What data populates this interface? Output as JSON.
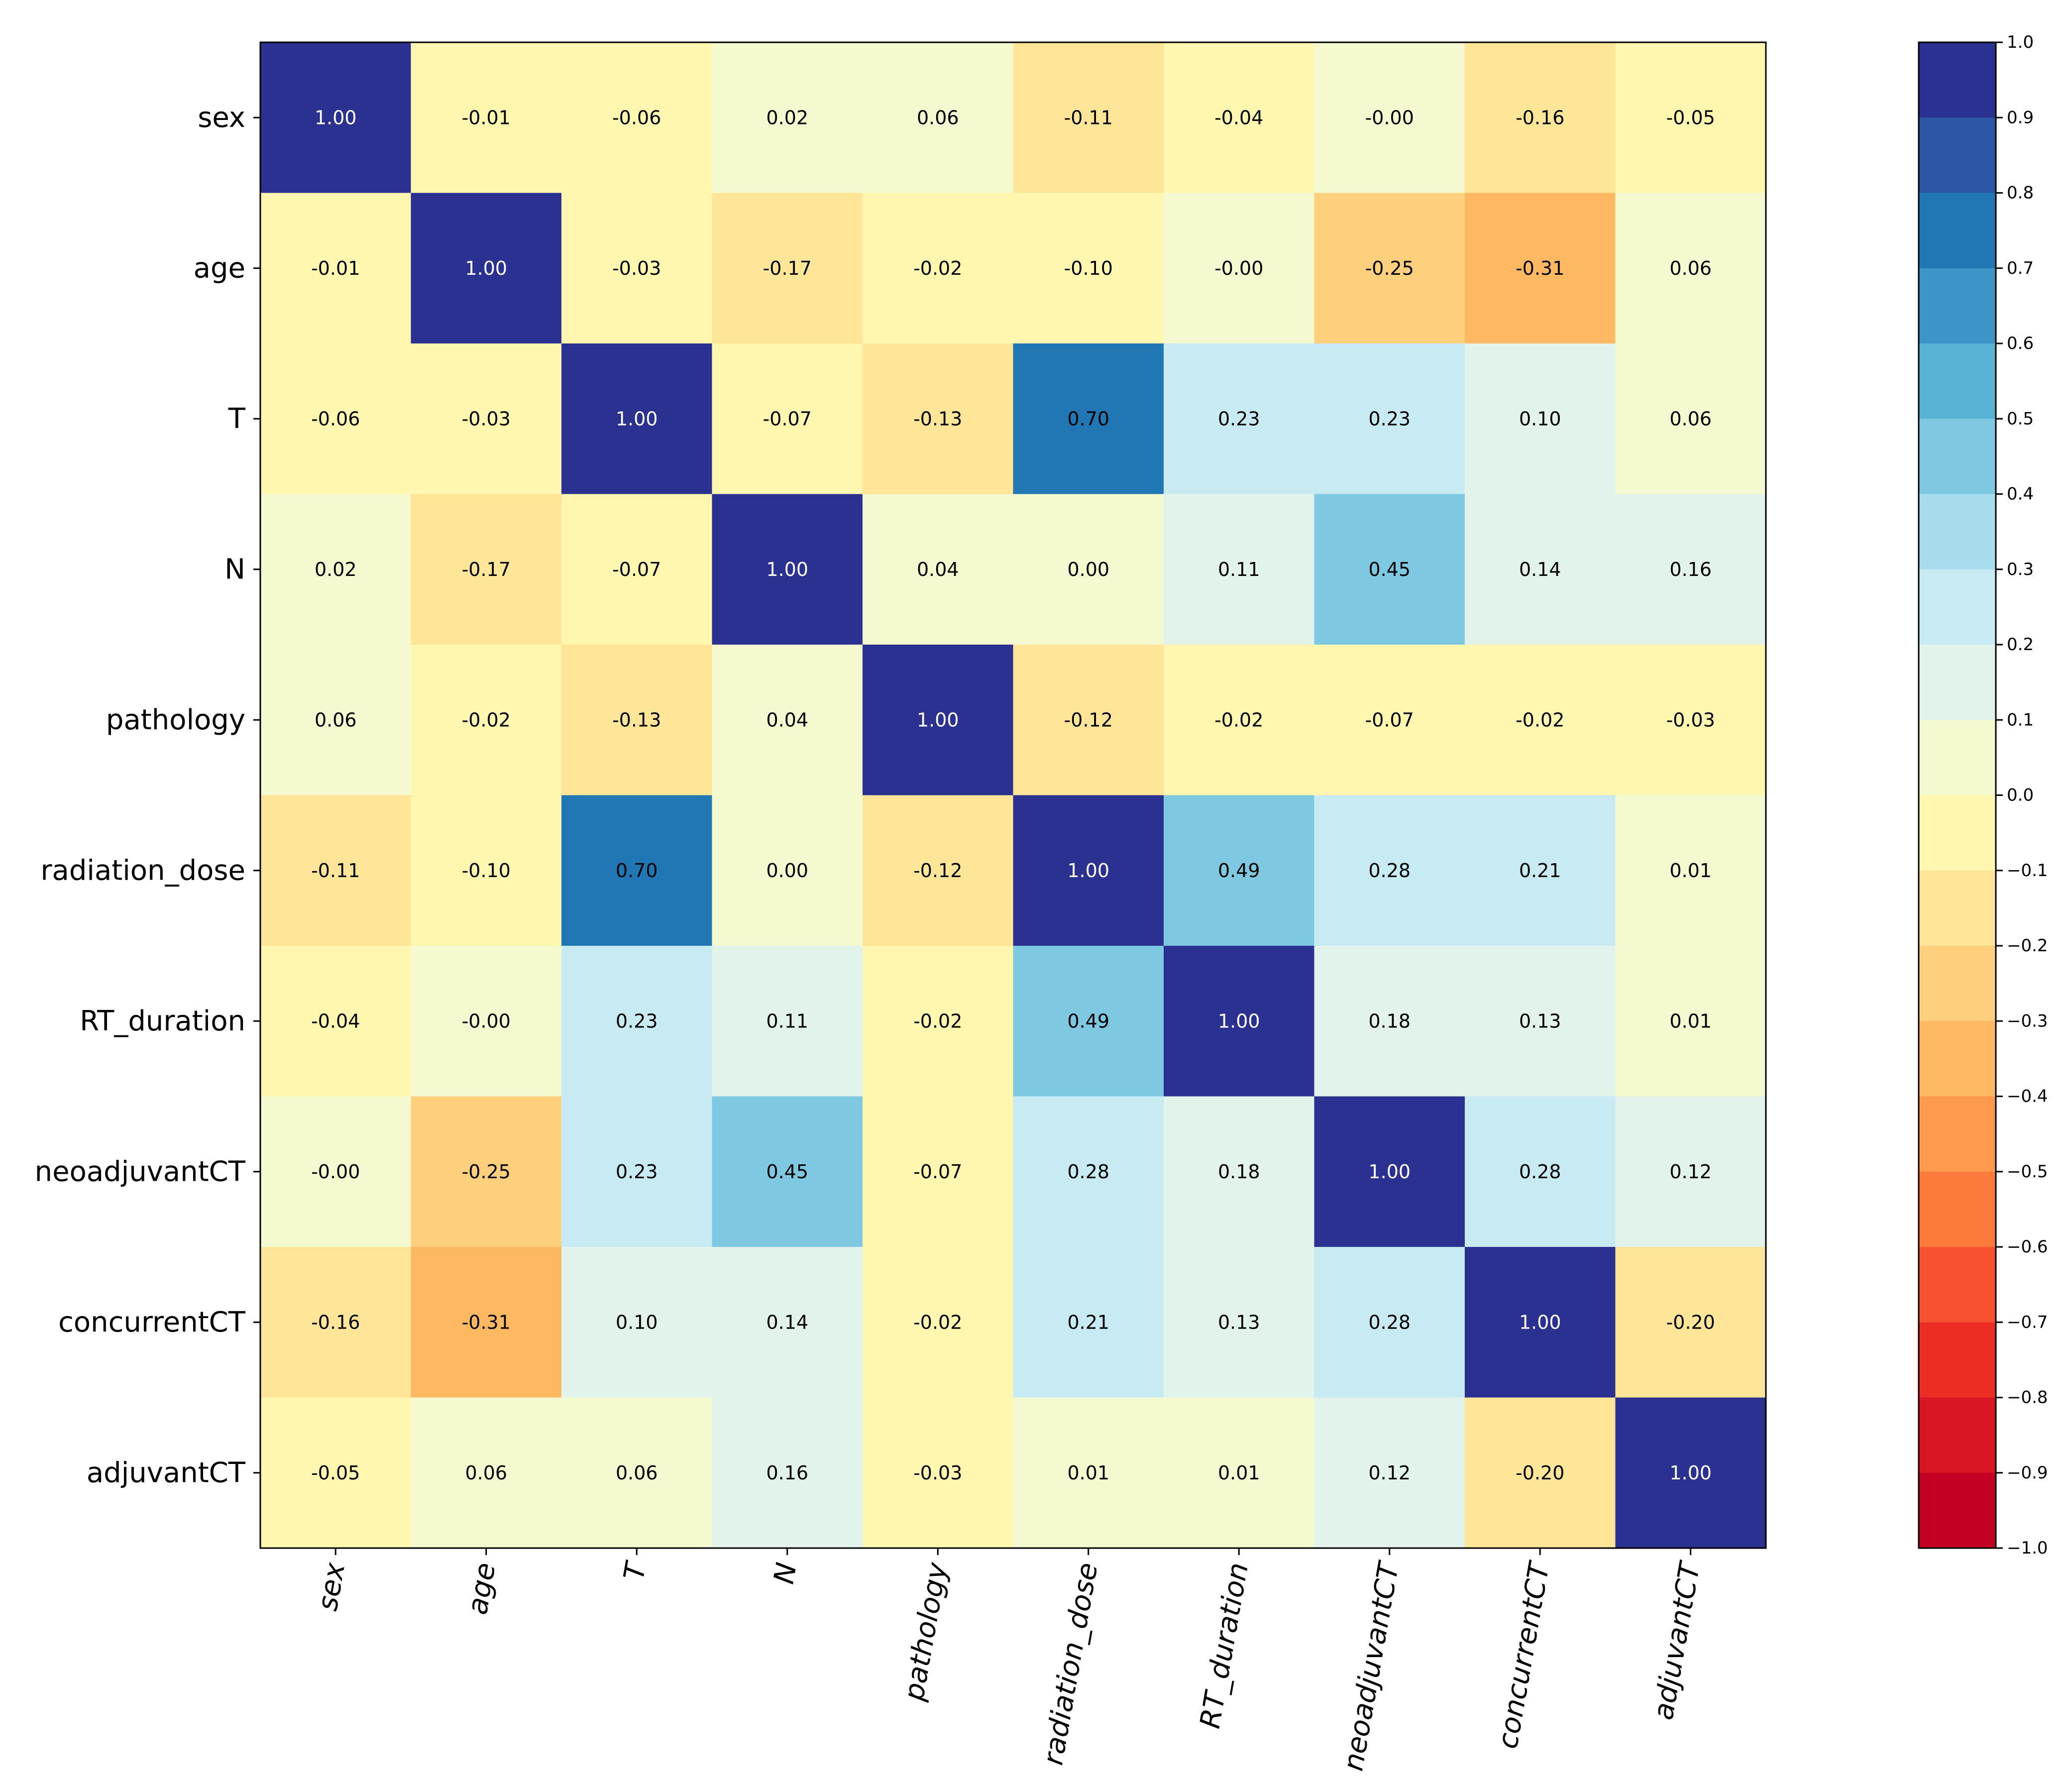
{
  "chart_data": {
    "type": "heatmap",
    "title": "",
    "xlabel": "",
    "ylabel": "",
    "labels": [
      "sex",
      "age",
      "T",
      "N",
      "pathology",
      "radiation_dose",
      "RT_duration",
      "neoadjuvantCT",
      "concurrentCT",
      "adjuvantCT"
    ],
    "matrix": [
      [
        1.0,
        -0.01,
        -0.06,
        0.02,
        0.06,
        -0.11,
        -0.04,
        -0.0,
        -0.16,
        -0.05
      ],
      [
        -0.01,
        1.0,
        -0.03,
        -0.17,
        -0.02,
        -0.1,
        -0.0,
        -0.25,
        -0.31,
        0.06
      ],
      [
        -0.06,
        -0.03,
        1.0,
        -0.07,
        -0.13,
        0.7,
        0.23,
        0.23,
        0.1,
        0.06
      ],
      [
        0.02,
        -0.17,
        -0.07,
        1.0,
        0.04,
        0.0,
        0.11,
        0.45,
        0.14,
        0.16
      ],
      [
        0.06,
        -0.02,
        -0.13,
        0.04,
        1.0,
        -0.12,
        -0.02,
        -0.07,
        -0.02,
        -0.03
      ],
      [
        -0.11,
        -0.1,
        0.7,
        0.0,
        -0.12,
        1.0,
        0.49,
        0.28,
        0.21,
        0.01
      ],
      [
        -0.04,
        -0.0,
        0.23,
        0.11,
        -0.02,
        0.49,
        1.0,
        0.18,
        0.13,
        0.01
      ],
      [
        -0.0,
        -0.25,
        0.23,
        0.45,
        -0.07,
        0.28,
        0.18,
        1.0,
        0.28,
        0.12
      ],
      [
        -0.16,
        -0.31,
        0.1,
        0.14,
        -0.02,
        0.21,
        0.13,
        0.28,
        1.0,
        -0.2
      ],
      [
        -0.05,
        0.06,
        0.06,
        0.16,
        -0.03,
        0.01,
        0.01,
        0.12,
        -0.2,
        1.0
      ]
    ],
    "value_format": "2 decimals",
    "colorbar": {
      "range": [
        -1.0,
        1.0
      ],
      "ticks": [
        "1.0",
        "0.9",
        "0.8",
        "0.7",
        "0.6",
        "0.5",
        "0.4",
        "0.3",
        "0.2",
        "0.1",
        "0.0",
        "−0.1",
        "−0.2",
        "−0.3",
        "−0.4",
        "−0.5",
        "−0.6",
        "−0.7",
        "−0.8",
        "−0.9",
        "−1.0"
      ],
      "bins": 20,
      "colors_top_to_bottom": [
        "#2b3191",
        "#2c56a6",
        "#2077b4",
        "#3c95c6",
        "#58b2d4",
        "#7fc8e1",
        "#a6dceb",
        "#c8eaf2",
        "#e1f3ea",
        "#f4f9cf",
        "#fff6b0",
        "#fee597",
        "#fed07e",
        "#feb862",
        "#fd9a4e",
        "#fb7a3c",
        "#f65232",
        "#eb2d24",
        "#db1624",
        "#c30023"
      ]
    },
    "x_tick_rotation": "rotated ~80 degrees",
    "legend": "none",
    "grid": false
  }
}
